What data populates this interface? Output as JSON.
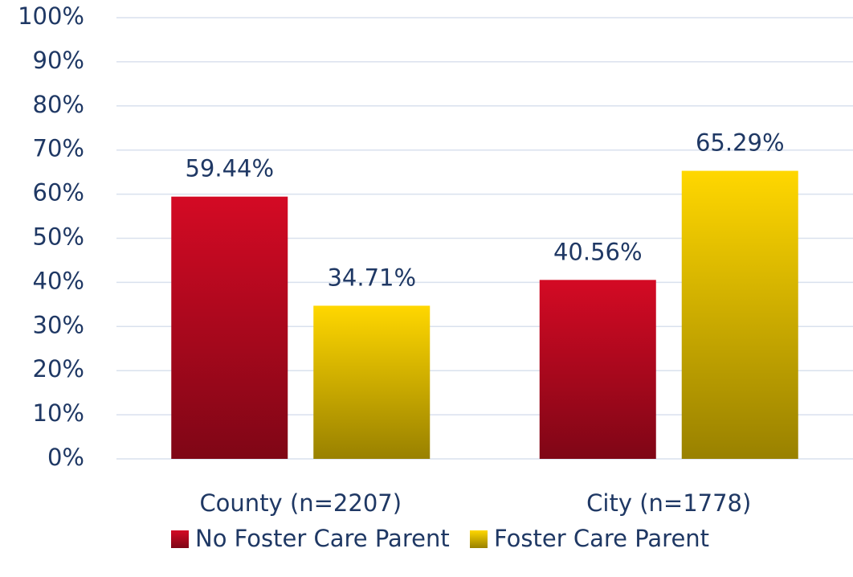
{
  "chart_data": {
    "type": "bar",
    "categories": [
      "County (n=2207)",
      "City (n=1778)"
    ],
    "series": [
      {
        "name": "No Foster Care Parent",
        "color": "#d40a24",
        "values": [
          59.44,
          40.56
        ],
        "value_labels": [
          "59.44%",
          "40.56%"
        ]
      },
      {
        "name": "Foster Care Parent",
        "color": "#ffd700",
        "values": [
          34.71,
          65.29
        ],
        "value_labels": [
          "34.71%",
          "65.29%"
        ]
      }
    ],
    "ylim": [
      0,
      100
    ],
    "yticks": [
      {
        "value": 0,
        "label": "0%"
      },
      {
        "value": 10,
        "label": "10%"
      },
      {
        "value": 20,
        "label": "20%"
      },
      {
        "value": 30,
        "label": "30%"
      },
      {
        "value": 40,
        "label": "40%"
      },
      {
        "value": 50,
        "label": "50%"
      },
      {
        "value": 60,
        "label": "60%"
      },
      {
        "value": 70,
        "label": "70%"
      },
      {
        "value": 80,
        "label": "80%"
      },
      {
        "value": 90,
        "label": "90%"
      },
      {
        "value": 100,
        "label": "100%"
      }
    ],
    "grid": true,
    "legend": "bottom"
  }
}
